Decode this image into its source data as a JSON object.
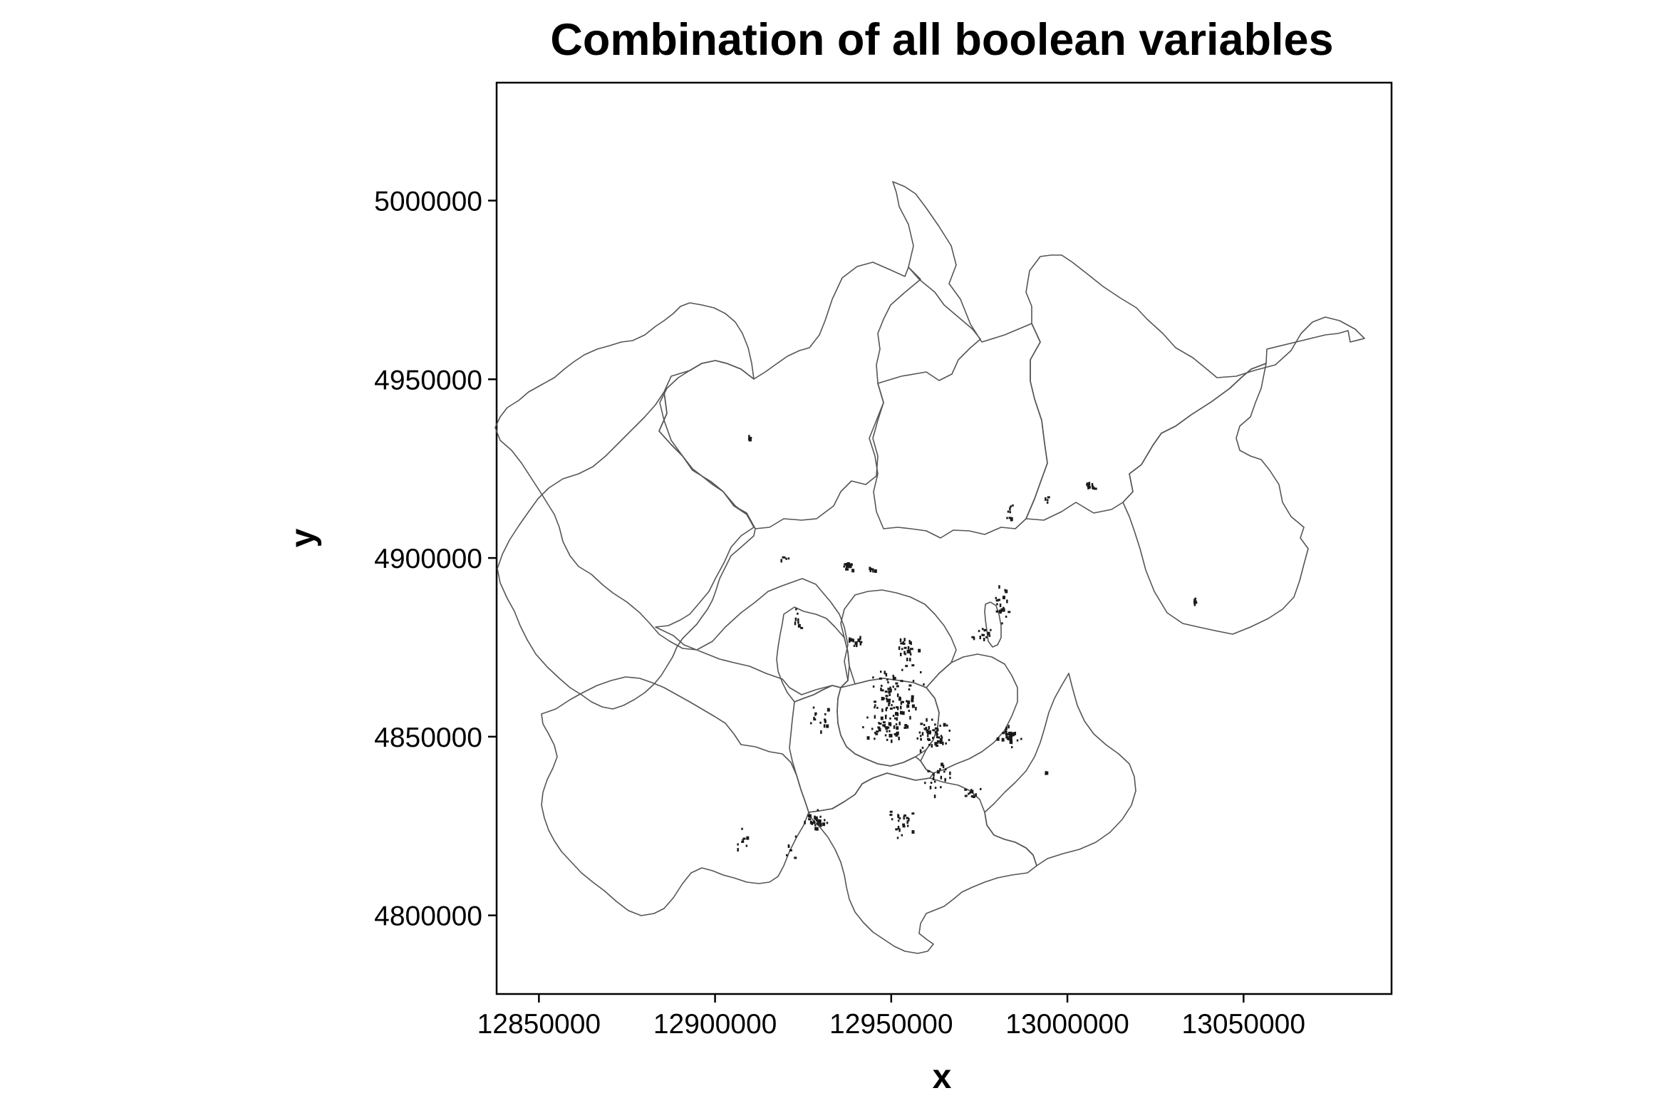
{
  "chart_data": {
    "type": "scatter",
    "title": "Combination of all boolean variables",
    "xlabel": "x",
    "ylabel": "y",
    "xlim": [
      12838000,
      13092000
    ],
    "ylim": [
      4778000,
      5033000
    ],
    "x_ticks": [
      12850000,
      12900000,
      12950000,
      13000000,
      13050000
    ],
    "x_tick_labels": [
      "12850000",
      "12900000",
      "12950000",
      "13000000",
      "13050000"
    ],
    "y_ticks": [
      4800000,
      4850000,
      4900000,
      4950000,
      5000000
    ],
    "y_tick_labels": [
      "4800000",
      "4850000",
      "4900000",
      "4950000",
      "5000000"
    ],
    "grid": false,
    "legend": "none",
    "colors": {
      "points": "#1a1a1a",
      "boundaries": "#555555",
      "frame": "#000000",
      "background": "#ffffff"
    },
    "boundary_layer": "district boundaries",
    "point_clusters": [
      {
        "x": 12909500,
        "y": 4934000,
        "n": 7,
        "sx": 400,
        "sy": 800
      },
      {
        "x": 12937500,
        "y": 4898000,
        "n": 20,
        "sx": 1200,
        "sy": 900
      },
      {
        "x": 12920000,
        "y": 4900000,
        "n": 5,
        "sx": 1200,
        "sy": 600
      },
      {
        "x": 12944000,
        "y": 4897000,
        "n": 6,
        "sx": 800,
        "sy": 500
      },
      {
        "x": 12983500,
        "y": 4913000,
        "n": 10,
        "sx": 900,
        "sy": 3000
      },
      {
        "x": 13006500,
        "y": 4920500,
        "n": 14,
        "sx": 1400,
        "sy": 800
      },
      {
        "x": 12993500,
        "y": 4917000,
        "n": 4,
        "sx": 900,
        "sy": 1500
      },
      {
        "x": 13036000,
        "y": 4888000,
        "n": 9,
        "sx": 300,
        "sy": 1800
      },
      {
        "x": 12981000,
        "y": 4887000,
        "n": 20,
        "sx": 1800,
        "sy": 5000
      },
      {
        "x": 12975500,
        "y": 4879000,
        "n": 14,
        "sx": 3000,
        "sy": 1500
      },
      {
        "x": 12954000,
        "y": 4875000,
        "n": 24,
        "sx": 3000,
        "sy": 3000
      },
      {
        "x": 12939500,
        "y": 4877500,
        "n": 14,
        "sx": 2000,
        "sy": 2000
      },
      {
        "x": 12951000,
        "y": 4861000,
        "n": 95,
        "sx": 7000,
        "sy": 7000
      },
      {
        "x": 12961000,
        "y": 4851000,
        "n": 50,
        "sx": 4500,
        "sy": 4000
      },
      {
        "x": 12948000,
        "y": 4852000,
        "n": 30,
        "sx": 5000,
        "sy": 3500
      },
      {
        "x": 12983500,
        "y": 4850500,
        "n": 40,
        "sx": 2600,
        "sy": 2200
      },
      {
        "x": 12930000,
        "y": 4855500,
        "n": 15,
        "sx": 3000,
        "sy": 3000
      },
      {
        "x": 12963500,
        "y": 4838000,
        "n": 20,
        "sx": 3500,
        "sy": 4500
      },
      {
        "x": 12972500,
        "y": 4834000,
        "n": 12,
        "sx": 2000,
        "sy": 2500
      },
      {
        "x": 12952500,
        "y": 4827000,
        "n": 22,
        "sx": 2600,
        "sy": 4000
      },
      {
        "x": 12928000,
        "y": 4827000,
        "n": 28,
        "sx": 3000,
        "sy": 2500
      },
      {
        "x": 12907500,
        "y": 4821000,
        "n": 9,
        "sx": 2000,
        "sy": 3000
      },
      {
        "x": 12921000,
        "y": 4819000,
        "n": 6,
        "sx": 2000,
        "sy": 3500
      },
      {
        "x": 12993500,
        "y": 4840000,
        "n": 3,
        "sx": 1200,
        "sy": 3000
      },
      {
        "x": 12923000,
        "y": 4884000,
        "n": 8,
        "sx": 1000,
        "sy": 3500
      }
    ]
  }
}
